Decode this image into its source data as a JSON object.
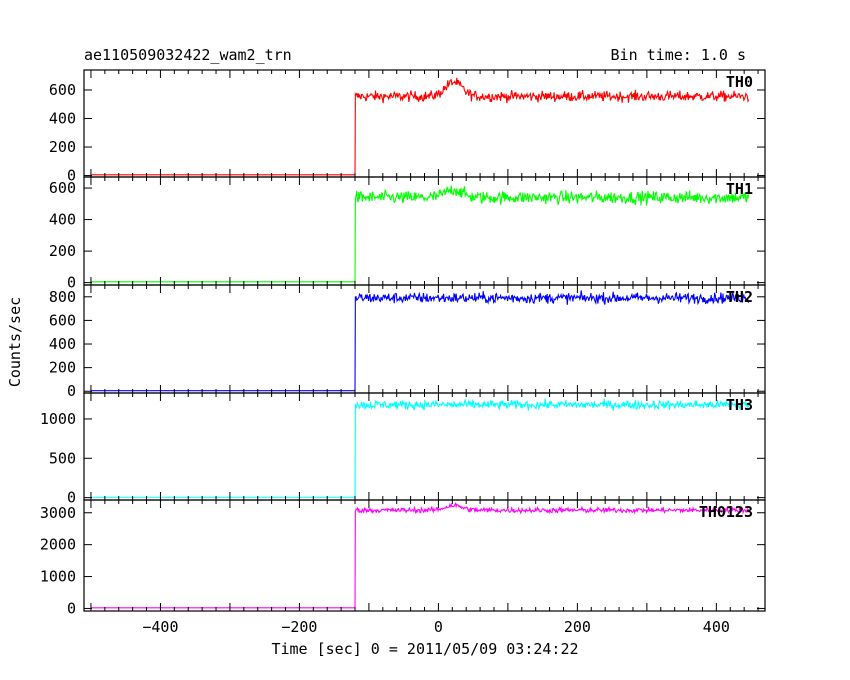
{
  "chart_data": {
    "type": "line",
    "title": "ae110509032422_wam2_trn",
    "bin_time_label": "Bin time: 1.0 s",
    "xlabel": "Time [sec] 0 = 2011/05/09 03:24:22",
    "ylabel": "Counts/sec",
    "xlim": [
      -510,
      470
    ],
    "x_ticks": [
      -400,
      -200,
      0,
      200,
      400
    ],
    "x_tick_labels": [
      "−400",
      "−200",
      "0",
      "200",
      "400"
    ],
    "step_time": -120,
    "data_start": -500,
    "data_end": 447,
    "panels": [
      {
        "name": "TH0",
        "color": "#ff0000",
        "ylim": [
          -10,
          740
        ],
        "y_ticks": [
          0,
          200,
          400,
          600
        ],
        "y_tick_labels": [
          "0",
          "200",
          "400",
          "600"
        ],
        "baseline": 5,
        "level": 555,
        "noise": 18,
        "bump": {
          "center": 22,
          "width": 12,
          "height": 100
        }
      },
      {
        "name": "TH1",
        "color": "#00ff00",
        "ylim": [
          -15,
          670
        ],
        "y_ticks": [
          0,
          200,
          400,
          600
        ],
        "y_tick_labels": [
          "0",
          "200",
          "400",
          "600"
        ],
        "baseline": 5,
        "level": 540,
        "noise": 20,
        "bump": {
          "center": 22,
          "width": 12,
          "height": 50
        }
      },
      {
        "name": "TH2",
        "color": "#0000ff",
        "ylim": [
          -15,
          900
        ],
        "y_ticks": [
          0,
          200,
          400,
          600,
          800
        ],
        "y_tick_labels": [
          "0",
          "200",
          "400",
          "600",
          "800"
        ],
        "baseline": 5,
        "level": 790,
        "noise": 22,
        "bump": {
          "center": 22,
          "width": 12,
          "height": 0
        }
      },
      {
        "name": "TH3",
        "color": "#00ffff",
        "ylim": [
          -30,
          1330
        ],
        "y_ticks": [
          0,
          500,
          1000
        ],
        "y_tick_labels": [
          "0",
          "500",
          "1000"
        ],
        "baseline": 5,
        "level": 1180,
        "noise": 28,
        "bump": {
          "center": 22,
          "width": 12,
          "height": 0
        }
      },
      {
        "name": "TH0123",
        "color": "#ff00ff",
        "ylim": [
          -80,
          3400
        ],
        "y_ticks": [
          0,
          1000,
          2000,
          3000
        ],
        "y_tick_labels": [
          "0",
          "1000",
          "2000",
          "3000"
        ],
        "baseline": 20,
        "level": 3080,
        "noise": 40,
        "bump": {
          "center": 22,
          "width": 12,
          "height": 150
        }
      }
    ]
  }
}
